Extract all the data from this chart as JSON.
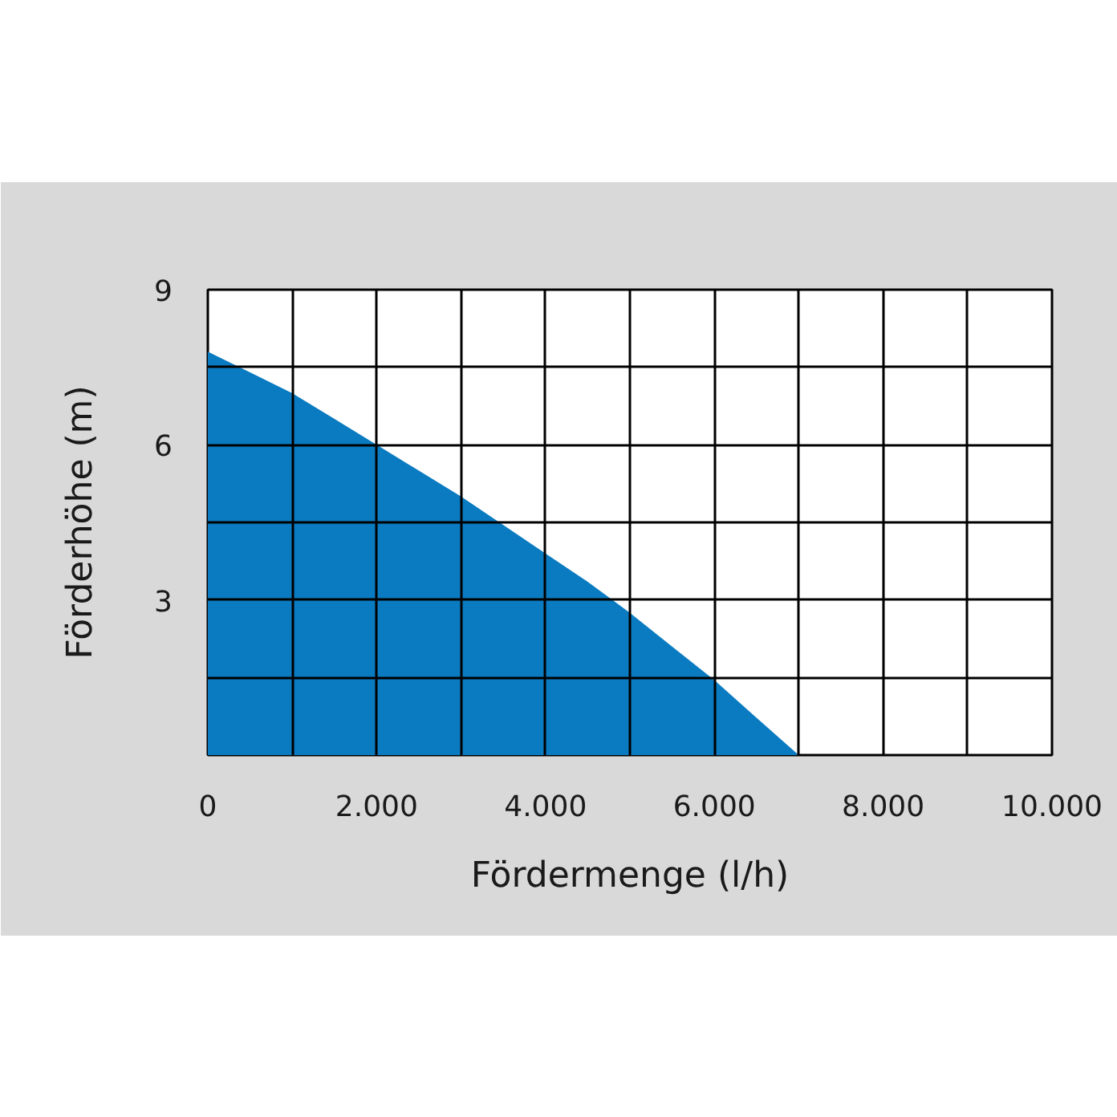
{
  "chart_data": {
    "type": "area",
    "xlabel": "Fördermenge (l/h)",
    "ylabel": "Förderhöhe (m)",
    "x": [
      0,
      500,
      1000,
      1500,
      2000,
      2500,
      3000,
      3500,
      4000,
      4500,
      5000,
      5500,
      6000,
      6500,
      7000
    ],
    "series": [
      {
        "color": "#0a7bc1",
        "values": [
          7.8,
          7.4,
          7.0,
          6.5,
          6.0,
          5.5,
          5.0,
          4.45,
          3.9,
          3.35,
          2.75,
          2.1,
          1.45,
          0.72,
          0
        ]
      }
    ],
    "xlim": [
      0,
      10000
    ],
    "ylim": [
      0,
      9
    ],
    "xticks": [
      0,
      {
        "value": 1000,
        "label": null
      },
      {
        "value": 2000,
        "label": "2.000"
      },
      {
        "value": 3000,
        "label": null
      },
      {
        "value": 4000,
        "label": "4.000"
      },
      {
        "value": 5000,
        "label": null
      },
      {
        "value": 6000,
        "label": "6.000"
      },
      {
        "value": 7000,
        "label": null
      },
      {
        "value": 8000,
        "label": "8.000"
      },
      {
        "value": 9000,
        "label": null
      },
      {
        "value": 10000,
        "label": "10.000"
      }
    ],
    "yticks": [
      {
        "value": 1.5,
        "label": null
      },
      3,
      {
        "value": 4.5,
        "label": null
      },
      6,
      {
        "value": 7.5,
        "label": null
      },
      9
    ],
    "grid": true
  }
}
